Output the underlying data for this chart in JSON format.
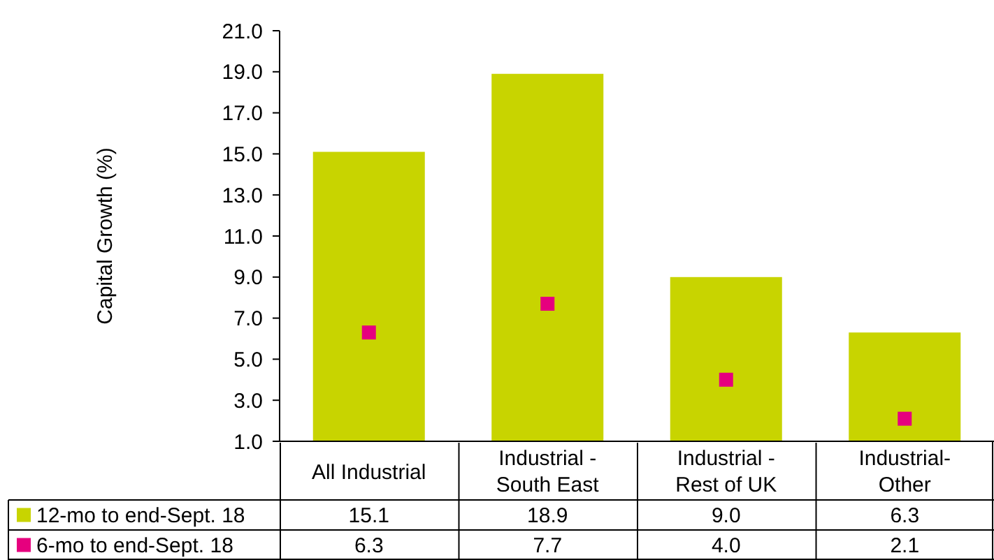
{
  "chart_data": {
    "type": "bar",
    "ylabel": "Capital Growth (%)",
    "categories": [
      "All Industrial",
      "Industrial - South East",
      "Industrial - Rest of UK",
      "Industrial- Other"
    ],
    "series": [
      {
        "name": "12-mo to end-Sept. 18",
        "color": "#c8d400",
        "values": [
          15.1,
          18.9,
          9.0,
          6.3
        ],
        "value_labels": [
          "15.1",
          "18.9",
          "9.0",
          "6.3"
        ]
      },
      {
        "name": "6-mo to end-Sept. 18",
        "type": "scatter",
        "color": "#e6007e",
        "marker": "square",
        "values": [
          6.3,
          7.7,
          4.0,
          2.1
        ],
        "value_labels": [
          "6.3",
          "7.7",
          "4.0",
          "2.1"
        ]
      }
    ],
    "ylim": [
      1,
      21
    ],
    "yticks": [
      {
        "value": 1,
        "label": "1.0"
      },
      {
        "value": 3,
        "label": "3.0"
      },
      {
        "value": 5,
        "label": "5.0"
      },
      {
        "value": 7,
        "label": "7.0"
      },
      {
        "value": 9,
        "label": "9.0"
      },
      {
        "value": 11,
        "label": "11.0"
      },
      {
        "value": 13,
        "label": "13.0"
      },
      {
        "value": 15,
        "label": "15.0"
      },
      {
        "value": 17,
        "label": "17.0"
      },
      {
        "value": 19,
        "label": "19.0"
      },
      {
        "value": 21,
        "label": "21.0"
      }
    ],
    "grid": false,
    "legend": "bottom left"
  }
}
